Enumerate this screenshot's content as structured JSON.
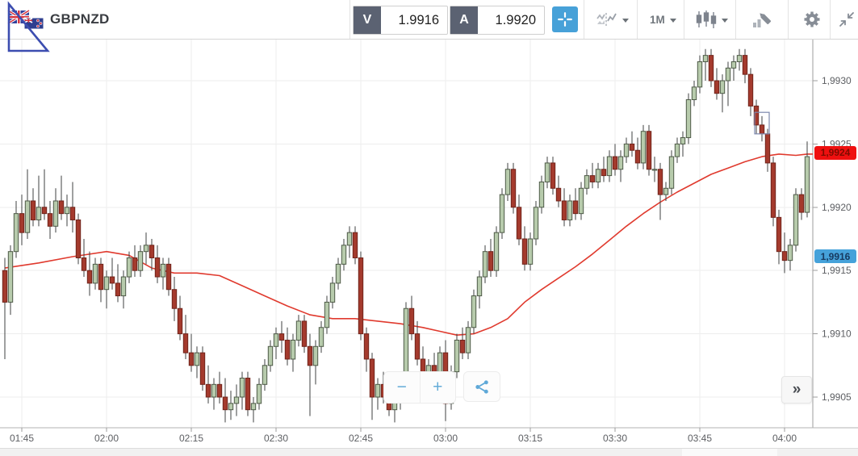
{
  "toolbar": {
    "symbol": "GBPNZD",
    "sell": {
      "label": "V",
      "value": "1.9916"
    },
    "buy": {
      "label": "A",
      "value": "1.9920"
    },
    "timeframe": "1M",
    "icons": [
      "gbpnzd-flags-icon",
      "crosshair-icon",
      "compare-charts-icon",
      "timeframe-dropdown",
      "candlestick-type-icon",
      "draw-marker-icon",
      "gear-icon",
      "collapse-icon"
    ]
  },
  "controls": {
    "zoom_out": "−",
    "zoom_in": "+",
    "share_icon": "share-icon",
    "expand": "»"
  },
  "colors": {
    "accent_blue": "#47a1d8",
    "candle_up_fill": "#b7cbac",
    "candle_up_border": "#4e5a47",
    "candle_down_fill": "#a43a2d",
    "candle_down_border": "#70241b",
    "wick": "#3f4040",
    "ma_line": "#e03a2e",
    "grid": "#ededed",
    "axis_text": "#5c5e62",
    "badge_last_bg": "#ef1010",
    "badge_last_fg": "#7e0b00",
    "badge_sell_bg": "#46a2da",
    "badge_sell_fg": "#173a60",
    "selection_box": "#7d89ae"
  },
  "chart_data": {
    "type": "candlestick",
    "symbol": "GBPNZD",
    "interval": "1m",
    "bar_start_time": "01:42",
    "bar_interval_min": 1,
    "ylim": [
      1.99025,
      1.99333
    ],
    "grid": true,
    "x_axis": {
      "labels": [
        "01:45",
        "02:00",
        "02:15",
        "02:30",
        "02:45",
        "03:00",
        "03:15",
        "03:30",
        "03:45",
        "04:00"
      ],
      "bar_indices": [
        3,
        18,
        33,
        48,
        63,
        78,
        93,
        108,
        123,
        138
      ]
    },
    "y_axis": {
      "labels": [
        "1,9930",
        "1,9925",
        "1,9920",
        "1,9915",
        "1,9910",
        "1,9905"
      ],
      "prices": [
        1.993,
        1.9925,
        1.992,
        1.9915,
        1.991,
        1.9905
      ]
    },
    "candles": [
      [
        1.9915,
        1.9916,
        1.9908,
        1.99125
      ],
      [
        1.99125,
        1.9917,
        1.99115,
        1.99165
      ],
      [
        1.99165,
        1.99205,
        1.9916,
        1.99195
      ],
      [
        1.99195,
        1.9921,
        1.9917,
        1.9918
      ],
      [
        1.9918,
        1.9923,
        1.99175,
        1.99205
      ],
      [
        1.99205,
        1.99215,
        1.99185,
        1.9919
      ],
      [
        1.9919,
        1.99225,
        1.99185,
        1.992
      ],
      [
        1.992,
        1.9923,
        1.9919,
        1.99195
      ],
      [
        1.99195,
        1.99205,
        1.99175,
        1.99185
      ],
      [
        1.99185,
        1.99215,
        1.9918,
        1.99205
      ],
      [
        1.99205,
        1.99225,
        1.9919,
        1.99195
      ],
      [
        1.99195,
        1.9921,
        1.99185,
        1.992
      ],
      [
        1.992,
        1.9922,
        1.9918,
        1.9919
      ],
      [
        1.9919,
        1.99195,
        1.99155,
        1.9916
      ],
      [
        1.9916,
        1.99175,
        1.99145,
        1.9915
      ],
      [
        1.9915,
        1.99165,
        1.9913,
        1.9914
      ],
      [
        1.9914,
        1.9916,
        1.99135,
        1.99155
      ],
      [
        1.99155,
        1.9916,
        1.99125,
        1.99135
      ],
      [
        1.99135,
        1.9915,
        1.9912,
        1.99145
      ],
      [
        1.99145,
        1.9916,
        1.99135,
        1.9914
      ],
      [
        1.9914,
        1.99155,
        1.99125,
        1.9913
      ],
      [
        1.9913,
        1.9915,
        1.9912,
        1.99145
      ],
      [
        1.99145,
        1.99165,
        1.9914,
        1.9916
      ],
      [
        1.9916,
        1.9917,
        1.99145,
        1.9915
      ],
      [
        1.9915,
        1.9917,
        1.99145,
        1.99165
      ],
      [
        1.99165,
        1.9918,
        1.99155,
        1.9917
      ],
      [
        1.9917,
        1.99175,
        1.9915,
        1.9916
      ],
      [
        1.9916,
        1.9917,
        1.9914,
        1.99145
      ],
      [
        1.99145,
        1.9916,
        1.99135,
        1.99155
      ],
      [
        1.99155,
        1.9916,
        1.9913,
        1.99135
      ],
      [
        1.99135,
        1.99145,
        1.9911,
        1.9912
      ],
      [
        1.9912,
        1.9913,
        1.99095,
        1.991
      ],
      [
        1.991,
        1.99115,
        1.9908,
        1.99085
      ],
      [
        1.99085,
        1.991,
        1.9907,
        1.99075
      ],
      [
        1.99075,
        1.9909,
        1.99065,
        1.99085
      ],
      [
        1.99085,
        1.9909,
        1.99055,
        1.9906
      ],
      [
        1.9906,
        1.99075,
        1.99045,
        1.9905
      ],
      [
        1.9905,
        1.99065,
        1.9904,
        1.9906
      ],
      [
        1.9906,
        1.9907,
        1.99045,
        1.9905
      ],
      [
        1.9905,
        1.99065,
        1.9903,
        1.9904
      ],
      [
        1.9904,
        1.99055,
        1.99032,
        1.99045
      ],
      [
        1.99045,
        1.9906,
        1.99035,
        1.9905
      ],
      [
        1.9905,
        1.9907,
        1.9904,
        1.99065
      ],
      [
        1.99065,
        1.9907,
        1.99035,
        1.9904
      ],
      [
        1.9904,
        1.9905,
        1.9903,
        1.99045
      ],
      [
        1.99045,
        1.99065,
        1.9904,
        1.9906
      ],
      [
        1.9906,
        1.9908,
        1.99055,
        1.99075
      ],
      [
        1.99075,
        1.99095,
        1.9907,
        1.9909
      ],
      [
        1.9909,
        1.99105,
        1.9908,
        1.991
      ],
      [
        1.991,
        1.9911,
        1.99085,
        1.99095
      ],
      [
        1.99095,
        1.99105,
        1.99075,
        1.9908
      ],
      [
        1.9908,
        1.991,
        1.9907,
        1.99095
      ],
      [
        1.99095,
        1.99115,
        1.9909,
        1.9911
      ],
      [
        1.9911,
        1.99115,
        1.99085,
        1.9909
      ],
      [
        1.9909,
        1.991,
        1.99035,
        1.99075
      ],
      [
        1.99075,
        1.99095,
        1.9906,
        1.9909
      ],
      [
        1.9909,
        1.9911,
        1.99085,
        1.99105
      ],
      [
        1.99105,
        1.9913,
        1.991,
        1.99125
      ],
      [
        1.99125,
        1.99145,
        1.9912,
        1.9914
      ],
      [
        1.9914,
        1.9916,
        1.99135,
        1.99155
      ],
      [
        1.99155,
        1.99175,
        1.9915,
        1.9917
      ],
      [
        1.9917,
        1.99185,
        1.9916,
        1.9918
      ],
      [
        1.9918,
        1.99185,
        1.99155,
        1.9916
      ],
      [
        1.9916,
        1.99165,
        1.99095,
        1.991
      ],
      [
        1.991,
        1.99105,
        1.9907,
        1.9908
      ],
      [
        1.9908,
        1.99085,
        1.99032,
        1.9905
      ],
      [
        1.9905,
        1.99065,
        1.9904,
        1.9906
      ],
      [
        1.9906,
        1.9907,
        1.99045,
        1.9905
      ],
      [
        1.9905,
        1.9906,
        1.99035,
        1.9904
      ],
      [
        1.9904,
        1.99055,
        1.9903,
        1.9905
      ],
      [
        1.9905,
        1.9906,
        1.9904,
        1.99055
      ],
      [
        1.99055,
        1.99125,
        1.9905,
        1.9912
      ],
      [
        1.9912,
        1.9913,
        1.99095,
        1.991
      ],
      [
        1.991,
        1.9911,
        1.99075,
        1.9908
      ],
      [
        1.9908,
        1.9909,
        1.99055,
        1.9906
      ],
      [
        1.9906,
        1.9908,
        1.99055,
        1.99075
      ],
      [
        1.99075,
        1.99085,
        1.9906,
        1.99065
      ],
      [
        1.99065,
        1.9909,
        1.9906,
        1.99085
      ],
      [
        1.99085,
        1.99095,
        1.99031,
        1.99045
      ],
      [
        1.99045,
        1.99075,
        1.9904,
        1.9907
      ],
      [
        1.9907,
        1.991,
        1.99065,
        1.99095
      ],
      [
        1.99095,
        1.99105,
        1.9908,
        1.99085
      ],
      [
        1.99085,
        1.9911,
        1.9908,
        1.99105
      ],
      [
        1.99105,
        1.99135,
        1.991,
        1.9913
      ],
      [
        1.9913,
        1.9915,
        1.9912,
        1.99145
      ],
      [
        1.99145,
        1.9917,
        1.9914,
        1.99165
      ],
      [
        1.99165,
        1.99175,
        1.99145,
        1.9915
      ],
      [
        1.9915,
        1.99185,
        1.99145,
        1.9918
      ],
      [
        1.9918,
        1.99215,
        1.99175,
        1.9921
      ],
      [
        1.9921,
        1.99235,
        1.99205,
        1.9923
      ],
      [
        1.9923,
        1.99235,
        1.99195,
        1.992
      ],
      [
        1.992,
        1.9921,
        1.9917,
        1.99175
      ],
      [
        1.99175,
        1.99185,
        1.9915,
        1.99155
      ],
      [
        1.99155,
        1.9918,
        1.9915,
        1.99175
      ],
      [
        1.99175,
        1.99205,
        1.9917,
        1.992
      ],
      [
        1.992,
        1.99225,
        1.99195,
        1.9922
      ],
      [
        1.9922,
        1.9924,
        1.99215,
        1.99235
      ],
      [
        1.99235,
        1.9924,
        1.9921,
        1.99215
      ],
      [
        1.99215,
        1.99225,
        1.992,
        1.99205
      ],
      [
        1.99205,
        1.99215,
        1.99185,
        1.9919
      ],
      [
        1.9919,
        1.9921,
        1.99185,
        1.99205
      ],
      [
        1.99205,
        1.99215,
        1.9919,
        1.99195
      ],
      [
        1.99195,
        1.9922,
        1.9919,
        1.99215
      ],
      [
        1.99215,
        1.9923,
        1.9921,
        1.99225
      ],
      [
        1.99225,
        1.99235,
        1.99215,
        1.9922
      ],
      [
        1.9922,
        1.99235,
        1.99215,
        1.9923
      ],
      [
        1.9923,
        1.9924,
        1.9922,
        1.99225
      ],
      [
        1.99225,
        1.99245,
        1.9922,
        1.9924
      ],
      [
        1.9924,
        1.9925,
        1.99225,
        1.9923
      ],
      [
        1.9923,
        1.99245,
        1.9922,
        1.9924
      ],
      [
        1.9924,
        1.99255,
        1.99235,
        1.9925
      ],
      [
        1.9925,
        1.9926,
        1.9924,
        1.99245
      ],
      [
        1.99245,
        1.99255,
        1.9923,
        1.99235
      ],
      [
        1.99235,
        1.99265,
        1.9923,
        1.9926
      ],
      [
        1.9926,
        1.99265,
        1.99225,
        1.9923
      ],
      [
        1.9923,
        1.9924,
        1.9922,
        1.9923
      ],
      [
        1.9923,
        1.99235,
        1.9919,
        1.9921
      ],
      [
        1.9921,
        1.9922,
        1.99205,
        1.99215
      ],
      [
        1.99215,
        1.99245,
        1.9921,
        1.9924
      ],
      [
        1.9924,
        1.99255,
        1.99235,
        1.9925
      ],
      [
        1.9925,
        1.9926,
        1.9924,
        1.99255
      ],
      [
        1.99255,
        1.9929,
        1.9925,
        1.99285
      ],
      [
        1.99285,
        1.993,
        1.9928,
        1.99295
      ],
      [
        1.99295,
        1.9932,
        1.9929,
        1.99315
      ],
      [
        1.99315,
        1.99325,
        1.993,
        1.9932
      ],
      [
        1.9932,
        1.99325,
        1.99295,
        1.993
      ],
      [
        1.993,
        1.9931,
        1.99285,
        1.9929
      ],
      [
        1.9929,
        1.99305,
        1.99275,
        1.993
      ],
      [
        1.993,
        1.99315,
        1.9928,
        1.9931
      ],
      [
        1.9931,
        1.9932,
        1.993,
        1.99315
      ],
      [
        1.99315,
        1.99325,
        1.99308,
        1.9932
      ],
      [
        1.9932,
        1.99325,
        1.99298,
        1.99305
      ],
      [
        1.99305,
        1.9931,
        1.99272,
        1.9928
      ],
      [
        1.9928,
        1.99285,
        1.99258,
        1.99265
      ],
      [
        1.99265,
        1.99272,
        1.99252,
        1.99258
      ],
      [
        1.99258,
        1.99262,
        1.99228,
        1.99235
      ],
      [
        1.99235,
        1.9924,
        1.99185,
        1.99192
      ],
      [
        1.99192,
        1.99198,
        1.99155,
        1.99165
      ],
      [
        1.99165,
        1.9918,
        1.99148,
        1.99158
      ],
      [
        1.99158,
        1.99175,
        1.9915,
        1.9917
      ],
      [
        1.9917,
        1.99215,
        1.99165,
        1.9921
      ],
      [
        1.9921,
        1.99215,
        1.9919,
        1.99196
      ],
      [
        1.99196,
        1.99252,
        1.99192,
        1.9924
      ]
    ],
    "ma_line": {
      "name": "moving-average",
      "points": [
        [
          0,
          1.99152
        ],
        [
          6,
          1.99156
        ],
        [
          12,
          1.99161
        ],
        [
          18,
          1.99165
        ],
        [
          22,
          1.99162
        ],
        [
          26,
          1.99152
        ],
        [
          30,
          1.99148
        ],
        [
          34,
          1.99148
        ],
        [
          38,
          1.99146
        ],
        [
          42,
          1.99138
        ],
        [
          46,
          1.9913
        ],
        [
          50,
          1.99122
        ],
        [
          54,
          1.99115
        ],
        [
          58,
          1.99112
        ],
        [
          62,
          1.99112
        ],
        [
          66,
          1.9911
        ],
        [
          70,
          1.99108
        ],
        [
          74,
          1.99105
        ],
        [
          77,
          1.99102
        ],
        [
          80,
          1.99099
        ],
        [
          83,
          1.991
        ],
        [
          86,
          1.99105
        ],
        [
          89,
          1.99112
        ],
        [
          92,
          1.99125
        ],
        [
          95,
          1.99135
        ],
        [
          98,
          1.99144
        ],
        [
          101,
          1.99153
        ],
        [
          104,
          1.99163
        ],
        [
          107,
          1.99174
        ],
        [
          110,
          1.99185
        ],
        [
          113,
          1.99195
        ],
        [
          116,
          1.99204
        ],
        [
          119,
          1.99212
        ],
        [
          122,
          1.99219
        ],
        [
          125,
          1.99226
        ],
        [
          128,
          1.99231
        ],
        [
          131,
          1.99236
        ],
        [
          134,
          1.9924
        ],
        [
          137,
          1.99242
        ],
        [
          140,
          1.99241
        ],
        [
          142,
          1.99242
        ]
      ]
    },
    "badges": [
      {
        "name": "last-price-badge",
        "label": "1,9924",
        "price": 1.99243
      },
      {
        "name": "sell-price-badge",
        "label": "1,9916",
        "price": 1.99161
      }
    ],
    "selection_box": {
      "bar_index": 134,
      "price_top": 1.99275,
      "price_bottom": 1.99258
    }
  }
}
